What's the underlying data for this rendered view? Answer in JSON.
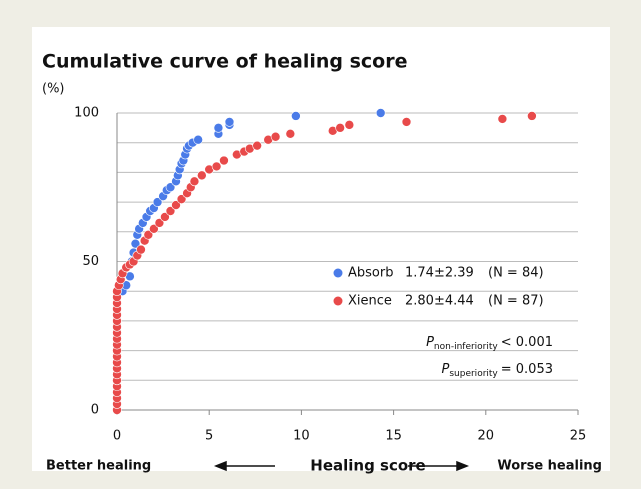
{
  "chart_data": {
    "type": "scatter",
    "title": "Cumulative curve of healing score",
    "y_unit": "(%)",
    "x_label": "Healing score",
    "x_left_label": "Better healing",
    "x_right_label": "Worse healing",
    "xlim": [
      0,
      25
    ],
    "xticks": [
      0,
      5,
      10,
      15,
      20,
      25
    ],
    "ylim": [
      0,
      100
    ],
    "yticks": [
      0,
      50,
      100
    ],
    "ygrid": [
      0,
      10,
      20,
      30,
      40,
      50,
      60,
      70,
      80,
      90,
      100
    ],
    "series": [
      {
        "name": "Absorb",
        "color": "#4a7be8",
        "stat": "1.74±2.39",
        "n": "(N = 84)",
        "x": [
          0,
          0,
          0,
          0,
          0,
          0,
          0,
          0,
          0,
          0,
          0.3,
          0.5,
          0.7,
          0.8,
          0.9,
          1,
          1.1,
          1.2,
          1.4,
          1.6,
          1.8,
          2.0,
          2.2,
          2.5,
          2.7,
          2.9,
          3.2,
          3.3,
          3.4,
          3.5,
          3.6,
          3.7,
          3.8,
          3.9,
          4.1,
          4.4,
          5.5,
          5.5,
          6.1,
          6.1,
          9.7,
          14.3
        ],
        "values": [
          2,
          6,
          10,
          14,
          18,
          22,
          26,
          30,
          34,
          38,
          40,
          42,
          45,
          50,
          53,
          56,
          59,
          61,
          63,
          65,
          67,
          68,
          70,
          72,
          74,
          75,
          77,
          79,
          81,
          83,
          84,
          86,
          88,
          89,
          90,
          91,
          93,
          95,
          96,
          97,
          99,
          100
        ]
      },
      {
        "name": "Xience",
        "color": "#e84a4a",
        "stat": "2.80±4.44",
        "n": "(N = 87)",
        "x": [
          0,
          0,
          0,
          0,
          0,
          0,
          0,
          0,
          0,
          0,
          0,
          0,
          0,
          0,
          0,
          0,
          0,
          0,
          0,
          0,
          0,
          0.1,
          0.2,
          0.3,
          0.5,
          0.7,
          0.9,
          1.1,
          1.3,
          1.5,
          1.7,
          2.0,
          2.3,
          2.6,
          2.9,
          3.2,
          3.5,
          3.8,
          4.0,
          4.2,
          4.6,
          5,
          5.4,
          5.8,
          6.5,
          6.9,
          7.2,
          7.6,
          8.2,
          8.6,
          9.4,
          11.7,
          12.1,
          12.6,
          15.7,
          20.9,
          22.5
        ],
        "values": [
          0,
          2,
          4,
          6,
          8,
          10,
          12,
          14,
          16,
          18,
          20,
          22,
          24,
          26,
          28,
          30,
          32,
          34,
          36,
          38,
          40,
          42,
          44,
          46,
          48,
          49,
          50,
          52,
          54,
          57,
          59,
          61,
          63,
          65,
          67,
          69,
          71,
          73,
          75,
          77,
          79,
          81,
          82,
          84,
          86,
          87,
          88,
          89,
          91,
          92,
          93,
          94,
          95,
          96,
          97,
          98,
          99
        ]
      }
    ],
    "annotations": [
      {
        "symbol": "P",
        "subscript": "non-inferiority",
        "text": "< 0.001"
      },
      {
        "symbol": "P",
        "subscript": "superiority",
        "text": "= 0.053"
      }
    ]
  }
}
